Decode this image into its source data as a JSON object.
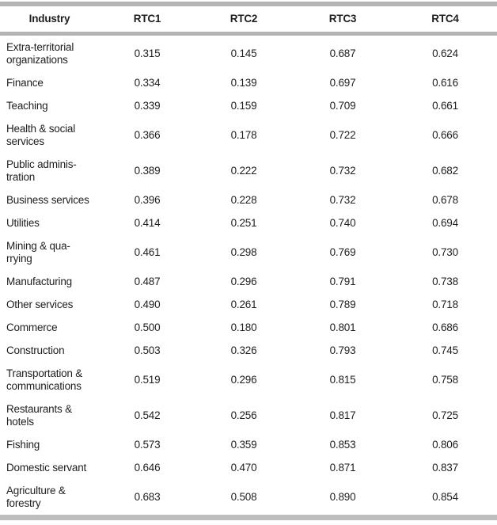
{
  "colors": {
    "rule_gray": "#b4b4b4",
    "bottom_rule_gray": "#bdbdbd",
    "text": "#1e1e1e",
    "background": "#ffffff"
  },
  "chart_data": {
    "type": "table",
    "title": "",
    "columns": [
      "Industry",
      "RTC1",
      "RTC2",
      "RTC3",
      "RTC4"
    ],
    "rows": [
      {
        "industry": "Extra-territorial\norganizations",
        "values": [
          "0.315",
          "0.145",
          "0.687",
          "0.624"
        ]
      },
      {
        "industry": "Finance",
        "values": [
          "0.334",
          "0.139",
          "0.697",
          "0.616"
        ]
      },
      {
        "industry": "Teaching",
        "values": [
          "0.339",
          "0.159",
          "0.709",
          "0.661"
        ]
      },
      {
        "industry": "Health & social\nservices",
        "values": [
          "0.366",
          "0.178",
          "0.722",
          "0.666"
        ]
      },
      {
        "industry": "Public adminis-\ntration",
        "values": [
          "0.389",
          "0.222",
          "0.732",
          "0.682"
        ]
      },
      {
        "industry": "Business services",
        "values": [
          "0.396",
          "0.228",
          "0.732",
          "0.678"
        ]
      },
      {
        "industry": "Utilities",
        "values": [
          "0.414",
          "0.251",
          "0.740",
          "0.694"
        ]
      },
      {
        "industry": "Mining & qua-\nrrying",
        "values": [
          "0.461",
          "0.298",
          "0.769",
          "0.730"
        ]
      },
      {
        "industry": "Manufacturing",
        "values": [
          "0.487",
          "0.296",
          "0.791",
          "0.738"
        ]
      },
      {
        "industry": "Other services",
        "values": [
          "0.490",
          "0.261",
          "0.789",
          "0.718"
        ]
      },
      {
        "industry": "Commerce",
        "values": [
          "0.500",
          "0.180",
          "0.801",
          "0.686"
        ]
      },
      {
        "industry": "Construction",
        "values": [
          "0.503",
          "0.326",
          "0.793",
          "0.745"
        ]
      },
      {
        "industry": "Transportation &\ncommunications",
        "values": [
          "0.519",
          "0.296",
          "0.815",
          "0.758"
        ]
      },
      {
        "industry": "Restaurants &\nhotels",
        "values": [
          "0.542",
          "0.256",
          "0.817",
          "0.725"
        ]
      },
      {
        "industry": "Fishing",
        "values": [
          "0.573",
          "0.359",
          "0.853",
          "0.806"
        ]
      },
      {
        "industry": "Domestic servant",
        "values": [
          "0.646",
          "0.470",
          "0.871",
          "0.837"
        ]
      },
      {
        "industry": "Agriculture &\nforestry",
        "values": [
          "0.683",
          "0.508",
          "0.890",
          "0.854"
        ]
      }
    ]
  }
}
